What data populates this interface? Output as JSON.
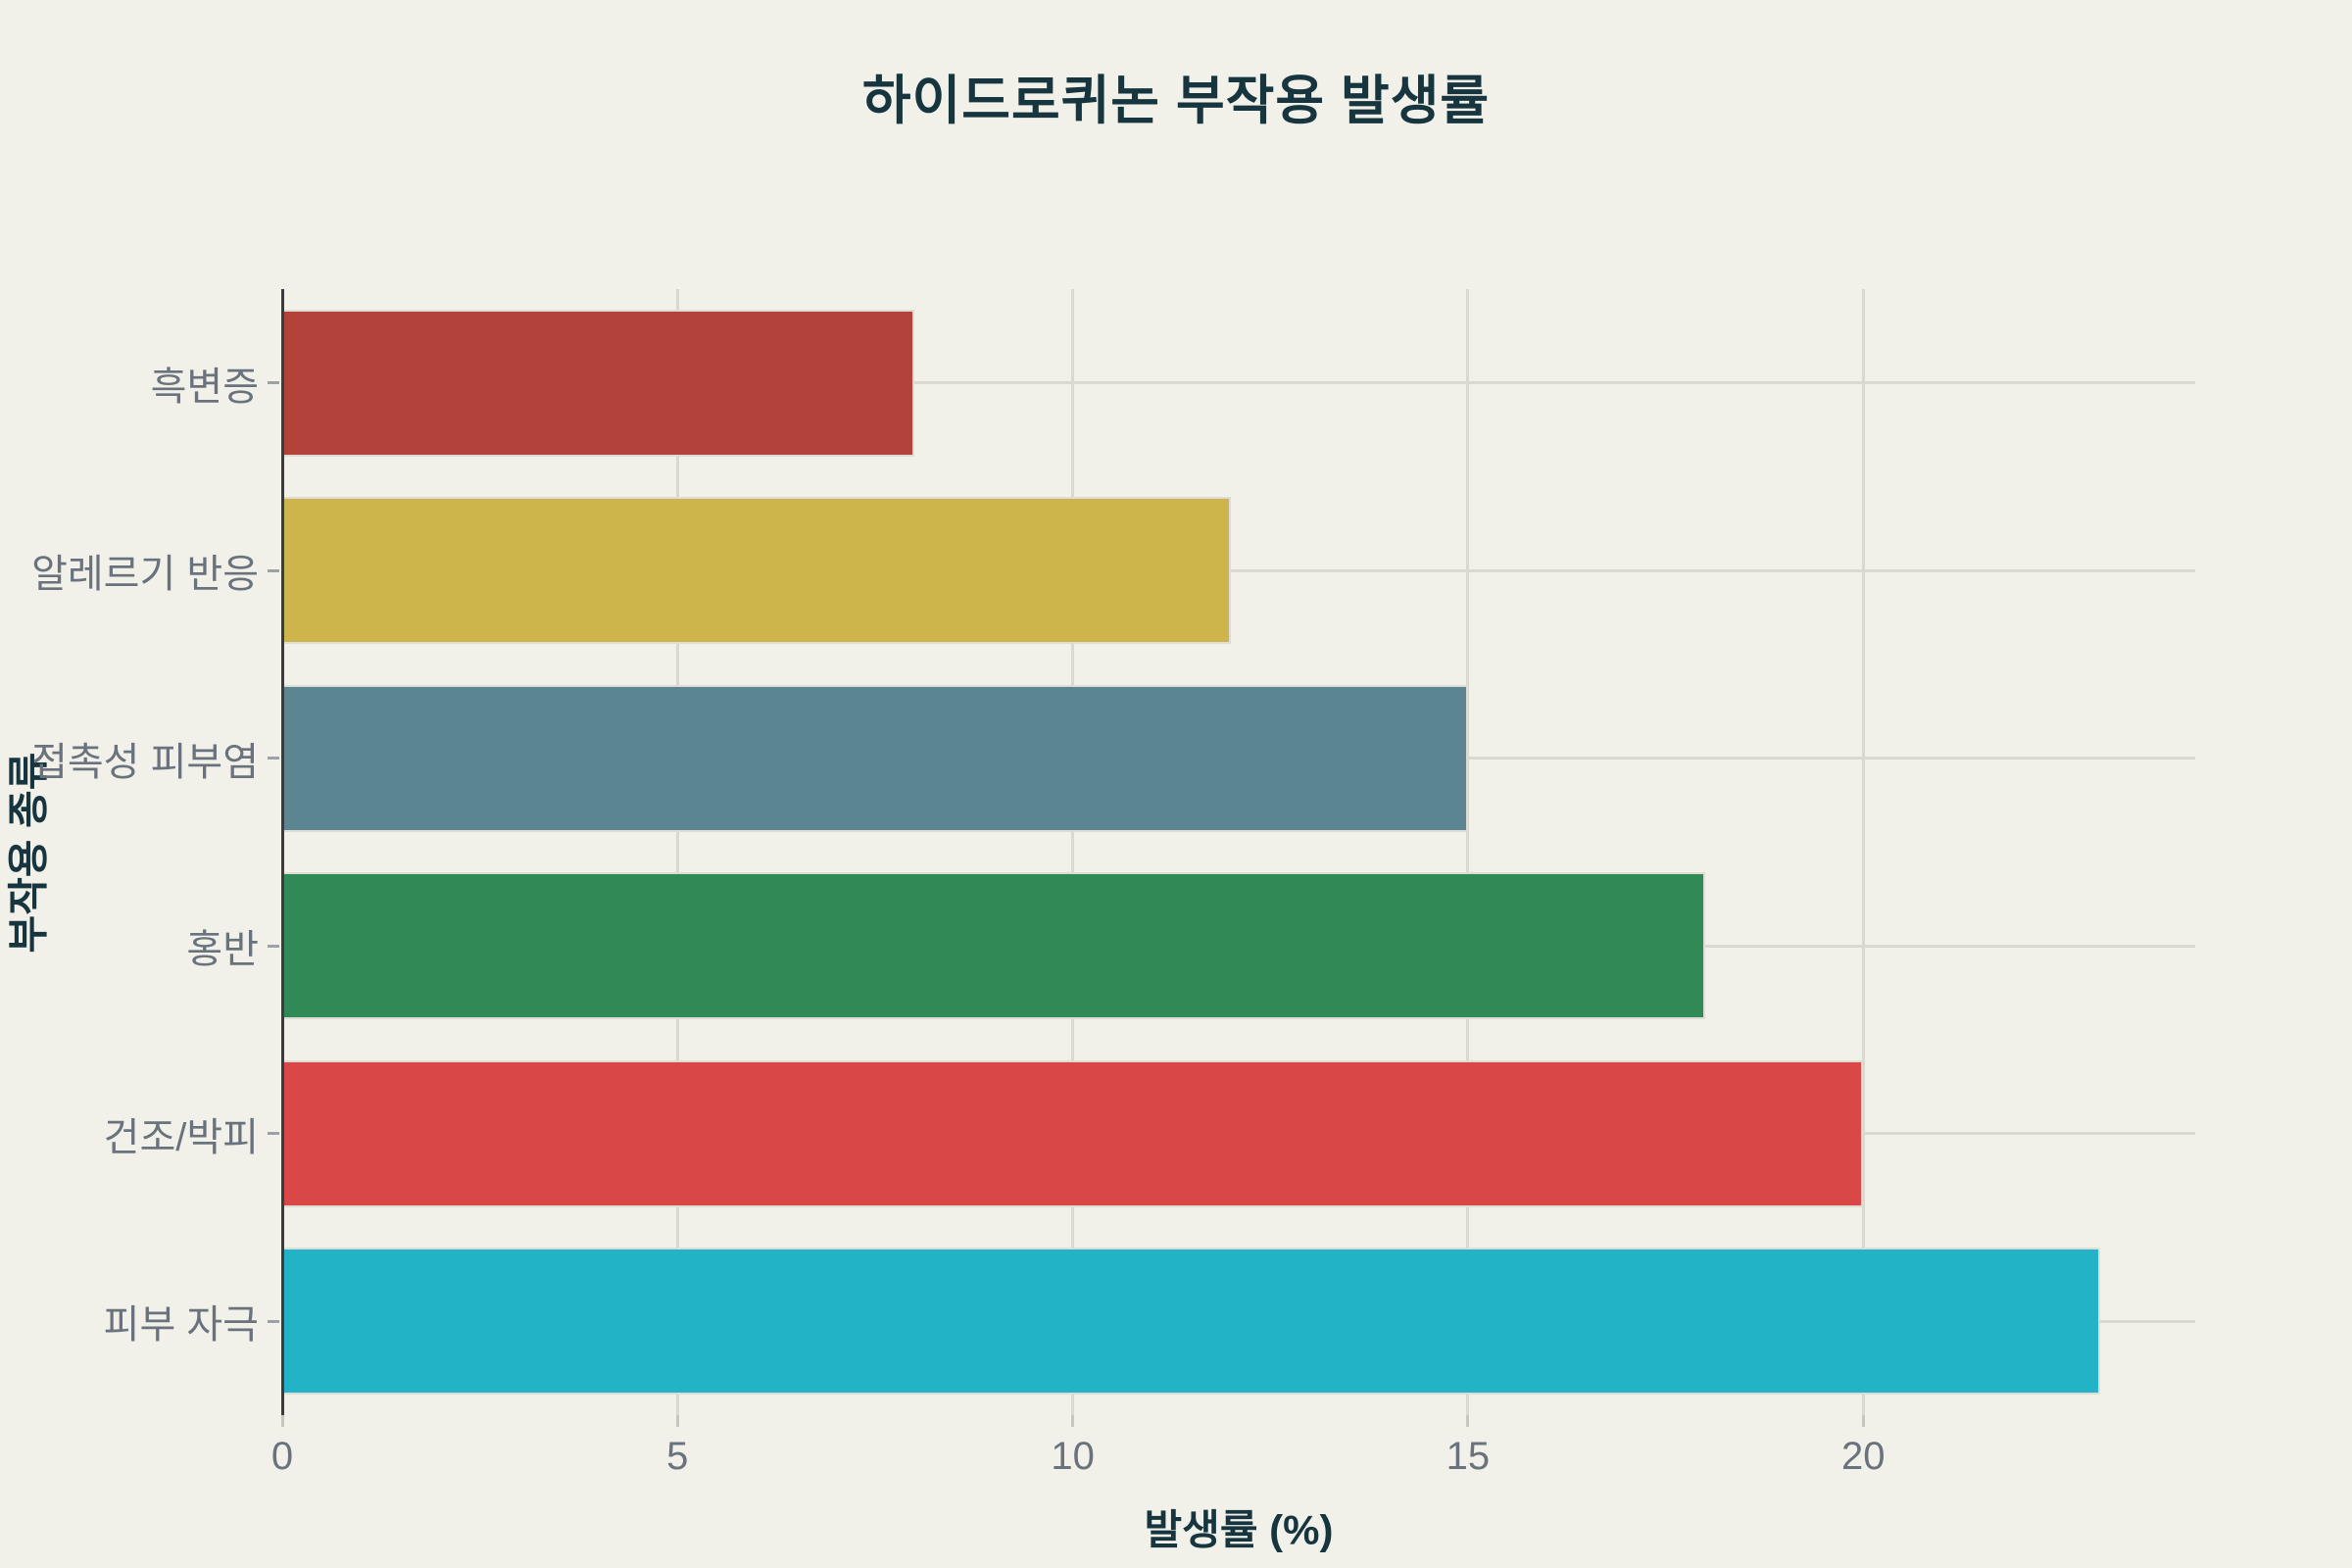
{
  "chart_data": {
    "type": "bar",
    "orientation": "horizontal",
    "title": "하이드로퀴논 부작용 발생률",
    "xlabel": "발생률 (%)",
    "ylabel": "부작용 종류",
    "categories": [
      "흑변증",
      "알레르기 반응",
      "접촉성 피부염",
      "홍반",
      "건조/박피",
      "피부 자극"
    ],
    "values": [
      8,
      12,
      15,
      18,
      20,
      23
    ],
    "bar_colors": [
      "#B2423A",
      "#CDB54C",
      "#5A8591",
      "#2F8A56",
      "#D94747",
      "#22B4C6"
    ],
    "x_tick_labels": [
      "0",
      "5",
      "10",
      "15",
      "20"
    ],
    "x_tick_values": [
      0,
      5,
      10,
      15,
      20
    ],
    "xlim": [
      0,
      24.2
    ],
    "grid": "both",
    "legend": false
  },
  "style": {
    "background": "#F1F0E9",
    "grid_color": "#DBD8D0",
    "axis_line_color": "#3A3D3F",
    "tick_mark_color": "#C8C6BE",
    "category_dash_color": "#9BA1A6",
    "heading_color": "#16353E",
    "tick_label_color": "#6A737D",
    "bar_edge_color": "#DEDCD4"
  }
}
